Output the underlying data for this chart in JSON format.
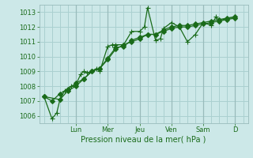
{
  "title": "",
  "xlabel": "Pression niveau de la mer( hPa )",
  "ylabel": "",
  "bg_color": "#cce8e8",
  "grid_color": "#aad0d0",
  "line_color": "#1a6b1a",
  "ylim": [
    1005.5,
    1013.5
  ],
  "yticks": [
    1006,
    1007,
    1008,
    1009,
    1010,
    1011,
    1012,
    1013
  ],
  "day_labels": [
    "Lun",
    "Mer",
    "Jeu",
    "Ven",
    "Sam",
    "D"
  ],
  "day_positions": [
    2.0,
    4.0,
    6.0,
    8.0,
    10.0,
    12.0
  ],
  "xlim": [
    -0.3,
    12.8
  ],
  "series": [
    [
      0.0,
      1007.3,
      0.5,
      1005.8,
      0.8,
      1006.2,
      1.0,
      1007.1,
      1.3,
      1007.7,
      1.5,
      1007.8,
      1.7,
      1008.0,
      2.0,
      1008.1,
      2.3,
      1008.8,
      2.5,
      1009.0,
      2.7,
      1008.9,
      3.0,
      1009.0,
      3.3,
      1009.2,
      3.5,
      1009.0,
      4.0,
      1010.7,
      4.3,
      1010.8,
      4.5,
      1010.8,
      5.0,
      1010.8,
      5.5,
      1011.7,
      6.0,
      1011.7,
      6.3,
      1012.0,
      6.5,
      1013.3,
      7.0,
      1011.1,
      7.3,
      1011.2,
      7.5,
      1011.9,
      8.0,
      1012.3,
      8.5,
      1012.0,
      9.0,
      1011.0,
      9.5,
      1011.5,
      10.0,
      1012.3,
      10.5,
      1012.1,
      10.8,
      1012.7,
      11.0,
      1012.4,
      11.5,
      1012.6,
      12.0,
      1012.6
    ],
    [
      0.0,
      1007.3,
      0.5,
      1007.0,
      1.0,
      1007.5,
      1.5,
      1007.8,
      2.0,
      1008.2,
      2.5,
      1008.5,
      3.0,
      1009.0,
      3.5,
      1009.2,
      4.0,
      1009.8,
      4.5,
      1010.5,
      5.0,
      1010.8,
      5.5,
      1011.0,
      6.0,
      1011.2,
      6.5,
      1011.5,
      7.0,
      1011.5,
      7.5,
      1011.7,
      8.0,
      1011.9,
      8.5,
      1012.0,
      9.0,
      1012.0,
      9.5,
      1012.1,
      10.0,
      1012.2,
      10.5,
      1012.3,
      11.0,
      1012.4,
      11.5,
      1012.5,
      12.0,
      1012.6
    ],
    [
      0.0,
      1007.3,
      1.0,
      1007.1,
      1.5,
      1007.7,
      2.0,
      1008.0,
      2.5,
      1008.5,
      3.0,
      1009.0,
      3.5,
      1009.2,
      4.0,
      1009.9,
      4.5,
      1010.6,
      5.0,
      1010.7,
      5.5,
      1011.1,
      6.0,
      1011.3,
      6.5,
      1011.5,
      7.0,
      1011.5,
      7.5,
      1011.8,
      8.0,
      1012.0,
      8.5,
      1012.1,
      9.0,
      1012.1,
      9.5,
      1012.2,
      10.0,
      1012.3,
      10.5,
      1012.4,
      11.0,
      1012.5,
      11.5,
      1012.6,
      12.0,
      1012.7
    ]
  ]
}
